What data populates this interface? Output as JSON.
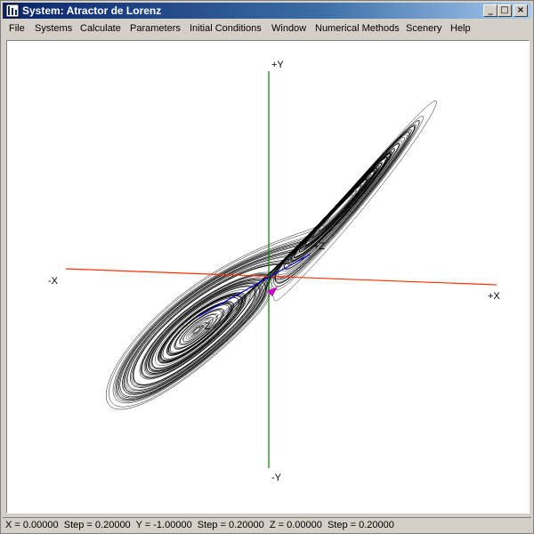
{
  "window": {
    "title": "System: Atractor de Lorenz",
    "buttons": {
      "minimize": "_",
      "maximize": "□",
      "close": "×"
    }
  },
  "menubar": {
    "items": [
      {
        "label": "File",
        "underline": "F"
      },
      {
        "label": "Systems",
        "underline": "S"
      },
      {
        "label": "Calculate",
        "underline": "C"
      },
      {
        "label": "Parameters",
        "underline": "P"
      },
      {
        "label": "Initial Conditions",
        "underline": "I"
      },
      {
        "label": "Window",
        "underline": "W"
      },
      {
        "label": "Numerical Methods",
        "underline": "N"
      },
      {
        "label": "Scenery",
        "underline": "S"
      },
      {
        "label": "Help",
        "underline": "H"
      }
    ]
  },
  "plot": {
    "axes": {
      "plus_y": "+Y",
      "minus_y": "-Y",
      "plus_x": "+X",
      "minus_x": "-X",
      "plus_z": "+Z",
      "minus_z": "-Z"
    },
    "colors": {
      "x_axis": "#ff3300",
      "y_axis": "#008000",
      "z_axis": "#0000cc",
      "trajectory": "#000000",
      "origin_marker": "#cc00cc"
    }
  },
  "status": {
    "text": "X = 0.00000  Step = 0.20000  Y = -1.00000  Step = 0.20000  Z = 0.00000  Step = 0.20000"
  }
}
